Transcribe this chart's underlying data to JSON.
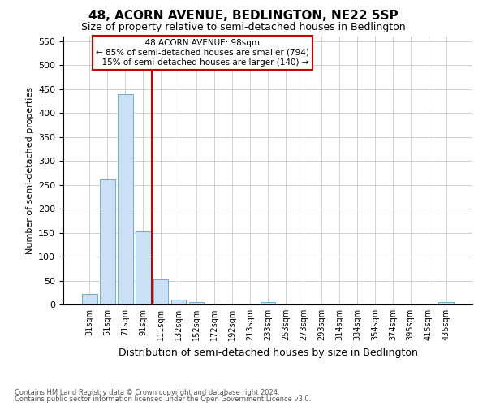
{
  "title": "48, ACORN AVENUE, BEDLINGTON, NE22 5SP",
  "subtitle": "Size of property relative to semi-detached houses in Bedlington",
  "xlabel": "Distribution of semi-detached houses by size in Bedlington",
  "ylabel": "Number of semi-detached properties",
  "categories": [
    "31sqm",
    "51sqm",
    "71sqm",
    "91sqm",
    "111sqm",
    "132sqm",
    "152sqm",
    "172sqm",
    "192sqm",
    "213sqm",
    "233sqm",
    "253sqm",
    "273sqm",
    "293sqm",
    "314sqm",
    "334sqm",
    "354sqm",
    "374sqm",
    "395sqm",
    "415sqm",
    "435sqm"
  ],
  "values": [
    22,
    262,
    440,
    152,
    52,
    10,
    5,
    0,
    0,
    0,
    5,
    0,
    0,
    0,
    0,
    0,
    0,
    0,
    0,
    0,
    5
  ],
  "bar_color": "#cce0f5",
  "bar_edge_color": "#6baed6",
  "ylim": [
    0,
    560
  ],
  "yticks": [
    0,
    50,
    100,
    150,
    200,
    250,
    300,
    350,
    400,
    450,
    500,
    550
  ],
  "property_label": "48 ACORN AVENUE: 98sqm",
  "pct_smaller": 85,
  "count_smaller": 794,
  "pct_larger": 15,
  "count_larger": 140,
  "vline_color": "#cc0000",
  "annotation_box_edge": "#cc0000",
  "grid_color": "#d0d0d0",
  "footer_line1": "Contains HM Land Registry data © Crown copyright and database right 2024.",
  "footer_line2": "Contains public sector information licensed under the Open Government Licence v3.0.",
  "vline_x_index": 3.5
}
